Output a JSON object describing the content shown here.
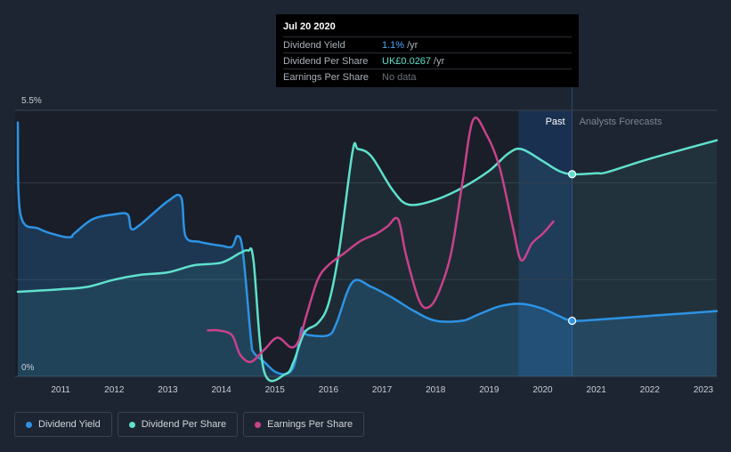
{
  "colors": {
    "background": "#1e2532",
    "dividend_yield": "#2d93e4",
    "dividend_per_share": "#5fe0cc",
    "earnings_per_share": "#c8428a",
    "past_band": "#151a23",
    "forecast_band": "#1a3050"
  },
  "tooltip": {
    "date": "Jul 20 2020",
    "rows": [
      {
        "label": "Dividend Yield",
        "value": "1.1%",
        "unit": "/yr",
        "color": "#4aa8ff"
      },
      {
        "label": "Dividend Per Share",
        "value": "UK£0.0267",
        "unit": "/yr",
        "color": "#5fe0cc"
      },
      {
        "label": "Earnings Per Share",
        "value": "",
        "unit": "",
        "nodata": "No data"
      }
    ]
  },
  "legend": [
    {
      "label": "Dividend Yield",
      "color": "#2d93e4"
    },
    {
      "label": "Dividend Per Share",
      "color": "#5fe0cc"
    },
    {
      "label": "Earnings Per Share",
      "color": "#c8428a"
    }
  ],
  "chart_data": {
    "type": "line",
    "ylim": [
      0,
      5.5
    ],
    "y_tick_labels": [
      "5.5%",
      "0%"
    ],
    "x_tick_labels": [
      "2011",
      "2012",
      "2013",
      "2014",
      "2015",
      "2016",
      "2017",
      "2018",
      "2019",
      "2020",
      "2021",
      "2022",
      "2023"
    ],
    "xlim": [
      2010.15,
      2023.25
    ],
    "past_label": "Past",
    "forecast_label": "Analysts Forecasts",
    "past_band_start": 2019.55,
    "current_date": 2020.55,
    "series": [
      {
        "name": "Dividend Yield",
        "x": [
          2010.2,
          2010.25,
          2010.6,
          2011.0,
          2011.2,
          2011.25,
          2011.6,
          2012.0,
          2012.25,
          2012.32,
          2012.5,
          2013.0,
          2013.25,
          2013.33,
          2013.6,
          2014.0,
          2014.2,
          2014.3,
          2014.4,
          2014.55,
          2014.6,
          2014.8,
          2015.0,
          2015.2,
          2015.35,
          2015.45,
          2015.5,
          2015.55,
          2015.65,
          2016.0,
          2016.15,
          2016.45,
          2016.8,
          2017.2,
          2017.6,
          2018.0,
          2018.5,
          2018.8,
          2019.2,
          2019.6,
          2020.0,
          2020.3,
          2020.55,
          2021.0,
          2022.0,
          2023.25
        ],
        "y": [
          5.25,
          3.35,
          3.05,
          2.9,
          2.88,
          2.95,
          3.25,
          3.35,
          3.35,
          3.05,
          3.15,
          3.62,
          3.7,
          2.9,
          2.78,
          2.7,
          2.68,
          2.9,
          2.6,
          0.8,
          0.5,
          0.3,
          0.1,
          0.05,
          0.2,
          0.7,
          1.0,
          0.9,
          0.85,
          0.85,
          1.1,
          1.95,
          1.85,
          1.62,
          1.35,
          1.15,
          1.15,
          1.28,
          1.45,
          1.5,
          1.4,
          1.25,
          1.15,
          1.17,
          1.25,
          1.35
        ]
      },
      {
        "name": "Dividend Per Share",
        "x": [
          2010.2,
          2011.0,
          2011.5,
          2012.0,
          2012.5,
          2013.0,
          2013.5,
          2014.0,
          2014.35,
          2014.5,
          2014.6,
          2014.8,
          2015.2,
          2015.35,
          2015.55,
          2015.8,
          2016.0,
          2016.2,
          2016.45,
          2016.55,
          2016.8,
          2017.2,
          2017.5,
          2018.0,
          2018.5,
          2019.0,
          2019.35,
          2019.6,
          2020.0,
          2020.3,
          2020.55,
          2021.0,
          2021.2,
          2022.0,
          2023.25
        ],
        "y": [
          1.75,
          1.8,
          1.85,
          2.0,
          2.1,
          2.15,
          2.3,
          2.35,
          2.55,
          2.6,
          2.4,
          0.1,
          0.05,
          0.3,
          0.9,
          1.1,
          1.5,
          2.6,
          4.65,
          4.7,
          4.55,
          3.85,
          3.55,
          3.65,
          3.9,
          4.25,
          4.6,
          4.7,
          4.45,
          4.25,
          4.18,
          4.2,
          4.22,
          4.5,
          4.88
        ]
      },
      {
        "name": "Earnings Per Share",
        "x": [
          2013.75,
          2013.95,
          2014.2,
          2014.35,
          2014.55,
          2014.8,
          2015.05,
          2015.3,
          2015.45,
          2015.6,
          2015.8,
          2016.0,
          2016.3,
          2016.6,
          2016.9,
          2017.1,
          2017.3,
          2017.45,
          2017.7,
          2017.9,
          2018.1,
          2018.3,
          2018.5,
          2018.7,
          2018.95,
          2019.2,
          2019.45,
          2019.6,
          2019.8,
          2020.0,
          2020.2
        ],
        "y": [
          0.95,
          0.95,
          0.85,
          0.45,
          0.3,
          0.55,
          0.8,
          0.6,
          0.75,
          1.3,
          2.0,
          2.3,
          2.55,
          2.8,
          2.95,
          3.1,
          3.25,
          2.5,
          1.55,
          1.45,
          1.85,
          2.6,
          4.0,
          5.3,
          5.0,
          4.3,
          3.05,
          2.4,
          2.75,
          2.95,
          3.2
        ]
      }
    ]
  }
}
